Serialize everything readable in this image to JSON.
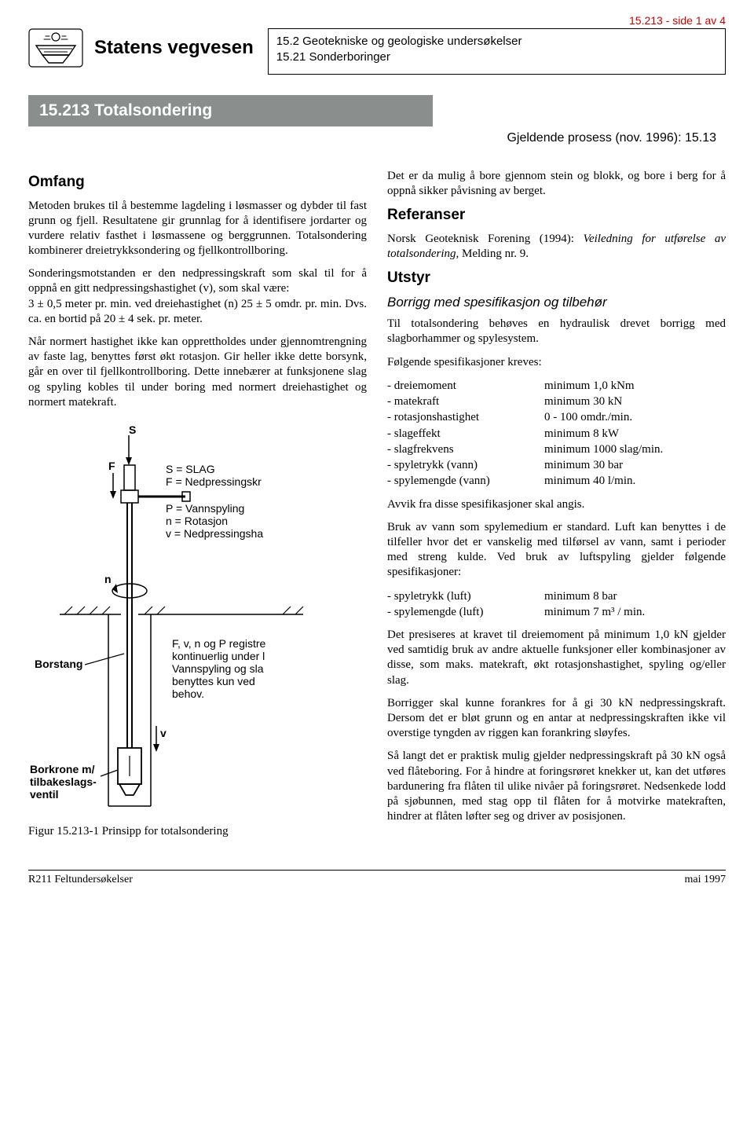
{
  "colors": {
    "accent_red": "#c00000",
    "section_bar_bg": "#8a8e8d",
    "section_bar_fg": "#ffffff",
    "text": "#000000",
    "bg": "#ffffff"
  },
  "header": {
    "page_ref": "15.213 - side 1 av 4",
    "org_name": "Statens vegvesen",
    "breadcrumb1": "15.2  Geotekniske og geologiske undersøkelser",
    "breadcrumb2": "15.21 Sonderboringer"
  },
  "section_bar": "15.213  Totalsondering",
  "gjeldende": "Gjeldende prosess (nov. 1996): 15.13",
  "left": {
    "h_omfang": "Omfang",
    "p1": "Metoden brukes til å bestemme lagdeling i løsmasser og dybder til fast grunn og fjell. Resultatene gir grunnlag for å identifisere jordarter og vurdere relativ fasthet i løsmassene og berggrunnen. Totalsondering kombinerer dreietrykksondering og fjellkontrollboring.",
    "p2": "Sonderingsmotstanden er den nedpressingskraft som skal til for å oppnå en gitt nedpressingshastighet (v), som skal være:\n3 ± 0,5 meter pr. min. ved dreiehastighet (n) 25 ± 5 omdr. pr. min. Dvs. ca. en bortid på 20 ± 4 sek. pr. meter.",
    "p3": "Når normert hastighet ikke kan opprettholdes under gjennomtrengning av faste lag, benyttes først økt rotasjon. Gir heller ikke dette borsynk, går en over til fjellkontrollboring. Dette innebærer at funksjonene slag og spyling kobles til under boring med normert dreiehastighet og normert matekraft.",
    "fig_caption": "Figur 15.213-1 Prinsipp for totalsondering",
    "fig_labels": {
      "S": "S",
      "F": "F",
      "n": "n",
      "v": "v",
      "borstang": "Borstang",
      "borkrone": "Borkrone m/\ntilbakeslags-\nventil",
      "legend": "S = SLAG\nF = Nedpressingskr\nP = Vannspyling\nn = Rotasjon\nv = Nedpressingsha",
      "note": "F, v, n og P registre\nkontinuerlig under l\nVannspyling og sla\nbenyttes kun ved\nbehov."
    }
  },
  "right": {
    "p_intro": "Det er da mulig å bore gjennom stein og blokk, og bore i berg for å oppnå sikker påvisning av berget.",
    "h_ref": "Referanser",
    "p_ref": "Norsk Geoteknisk Forening (1994): Veiledning for utførelse av totalsondering, Melding nr. 9.",
    "h_utstyr": "Utstyr",
    "h_borrigg": "Borrigg med spesifikasjon og tilbehør",
    "p_borrigg": "Til totalsondering behøves en hydraulisk drevet borrigg med slagborhammer og spylesystem.",
    "p_specs_intro": "Følgende spesifikasjoner kreves:",
    "specs": [
      {
        "k": "- dreiemoment",
        "v": "minimum 1,0 kNm"
      },
      {
        "k": "- matekraft",
        "v": "minimum 30 kN"
      },
      {
        "k": "- rotasjonshastighet",
        "v": "0 - 100 omdr./min."
      },
      {
        "k": "- slageffekt",
        "v": "minimum 8 kW"
      },
      {
        "k": "- slagfrekvens",
        "v": "minimum 1000 slag/min."
      },
      {
        "k": "- spyletrykk (vann)",
        "v": "minimum 30 bar"
      },
      {
        "k": "- spylemengde (vann)",
        "v": "minimum 40 l/min."
      }
    ],
    "p_avvik": "Avvik fra disse spesifikasjoner skal angis.",
    "p_vann": "Bruk av vann som spylemedium er standard. Luft kan benyttes i de tilfeller hvor det er vanskelig med tilførsel av vann, samt i perioder med streng kulde. Ved bruk av luftspyling gjelder følgende spesifikasjoner:",
    "specs_luft": [
      {
        "k": "- spyletrykk (luft)",
        "v": "minimum 8 bar"
      },
      {
        "k": "- spylemengde (luft)",
        "v": "minimum 7 m³ / min."
      }
    ],
    "p_dreie": "Det presiseres at kravet til dreiemoment på minimum 1,0 kN gjelder ved samtidig bruk av andre aktuelle funksjoner eller kombinasjoner av disse, som maks. matekraft, økt rotasjonshastighet, spyling og/eller slag.",
    "p_forankre": "Borrigger skal kunne forankres for å gi 30 kN nedpressingskraft. Dersom det er bløt grunn og en antar at nedpressingskraften ikke vil overstige tyngden av riggen kan forankring sløyfes.",
    "p_flate": "Så langt det er praktisk mulig gjelder nedpressingskraft på 30 kN også ved flåteboring. For å hindre at foringsrøret knekker ut, kan det utføres bardunering fra flåten til ulike nivåer på foringsrøret. Nedsenkede lodd på sjøbunnen, med stag opp til flåten for å motvirke matekraften, hindrer at flåten løfter seg og driver av posisjonen."
  },
  "footer": {
    "left": "R211 Feltundersøkelser",
    "right": "mai 1997"
  }
}
